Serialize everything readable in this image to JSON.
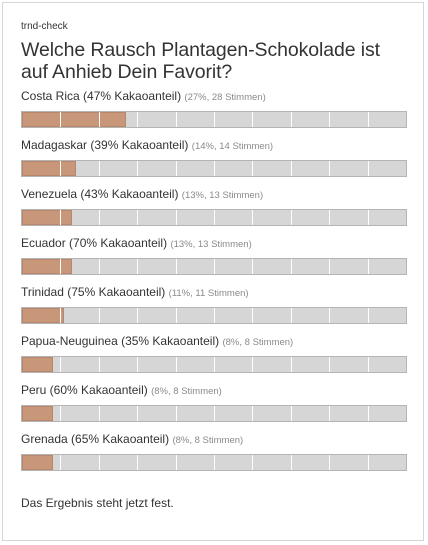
{
  "widget": {
    "brand": "trnd-check",
    "question": "Welche Rausch Plantagen-Schokolade ist auf Anhieb Dein Favorit?",
    "footer": "Das Ergebnis steht jetzt fest."
  },
  "colors": {
    "bar_fill": "#c8977a",
    "bar_track": "#d6d6d6",
    "text": "#333333",
    "meta": "#8a8a8a"
  },
  "options": [
    {
      "name": "Costa Rica (47% Kakaoanteil)",
      "meta": "(27%, 28 Stimmen)",
      "share": 0.27
    },
    {
      "name": "Madagaskar (39% Kakaoanteil)",
      "meta": "(14%, 14 Stimmen)",
      "share": 0.14
    },
    {
      "name": "Venezuela (43% Kakaoanteil)",
      "meta": "(13%, 13 Stimmen)",
      "share": 0.13
    },
    {
      "name": "Ecuador (70% Kakaoanteil)",
      "meta": "(13%, 13 Stimmen)",
      "share": 0.13
    },
    {
      "name": "Trinidad (75% Kakaoanteil)",
      "meta": "(11%, 11 Stimmen)",
      "share": 0.11
    },
    {
      "name": "Papua-Neuguinea (35% Kakaoanteil)",
      "meta": "(8%, 8 Stimmen)",
      "share": 0.08
    },
    {
      "name": "Peru (60% Kakaoanteil)",
      "meta": "(8%, 8 Stimmen)",
      "share": 0.08
    },
    {
      "name": "Grenada (65% Kakaoanteil)",
      "meta": "(8%, 8 Stimmen)",
      "share": 0.08
    }
  ]
}
